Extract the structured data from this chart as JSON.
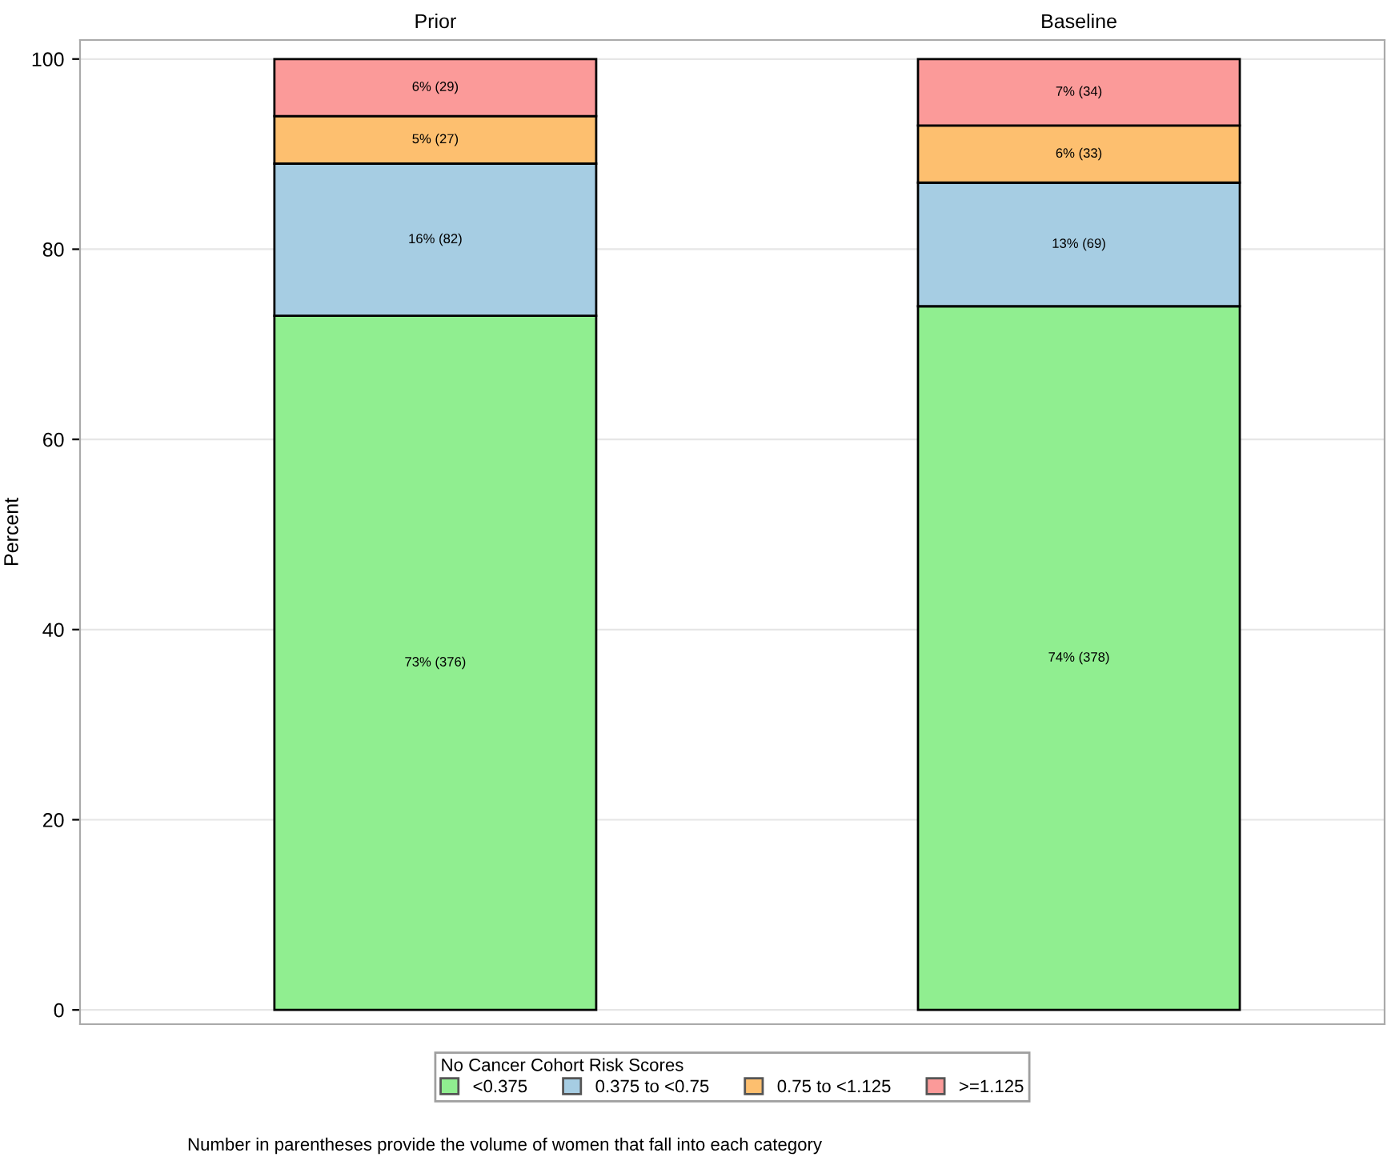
{
  "chart_data": {
    "type": "bar",
    "stacked": true,
    "categories": [
      "Prior",
      "Baseline"
    ],
    "ylabel": "Percent",
    "legend_title": "No Cancer Cohort Risk Scores",
    "series": [
      {
        "name": "<0.375",
        "color": "#90ee90",
        "values": [
          73,
          74
        ],
        "value_labels": [
          "73% (376)",
          "74% (378)"
        ]
      },
      {
        "name": "0.375 to <0.75",
        "color": "#a6cde3",
        "values": [
          16,
          13
        ],
        "value_labels": [
          "16% (82)",
          "13% (69)"
        ]
      },
      {
        "name": "0.75 to <1.125",
        "color": "#fdbf6f",
        "values": [
          5,
          6
        ],
        "value_labels": [
          "5% (27)",
          "6% (33)"
        ]
      },
      {
        "name": ">=1.125",
        "color": "#fb9a99",
        "values": [
          6,
          7
        ],
        "value_labels": [
          "6% (29)",
          "7% (34)"
        ]
      }
    ],
    "ylim": [
      -1.5,
      102
    ],
    "yticks": [
      0,
      20,
      40,
      60,
      80,
      100
    ],
    "grid": "y",
    "legend": "bottom",
    "annotations": [
      "Number in parentheses provide the volume of women that fall into each category"
    ]
  }
}
